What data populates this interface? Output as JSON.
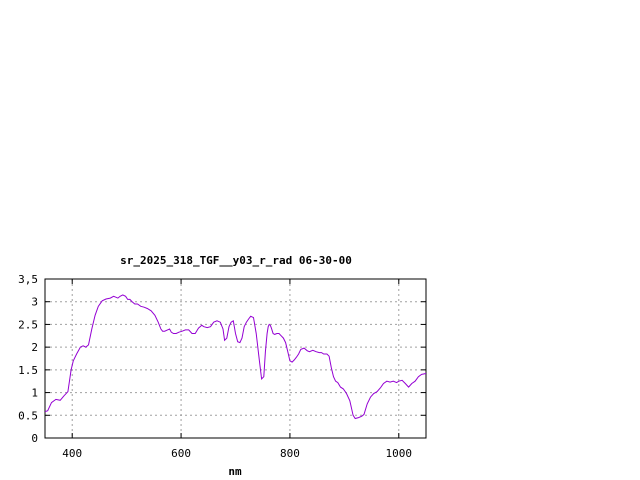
{
  "chart_data": {
    "type": "line",
    "title": "sr_2025_318_TGF__y03_r_rad 06-30-00",
    "xlabel": "nm",
    "ylabel": "",
    "xlim": [
      350,
      1050
    ],
    "ylim": [
      0,
      3.5
    ],
    "grid": true,
    "x_ticks": [
      400,
      600,
      800,
      1000
    ],
    "x_tick_labels": [
      "400",
      "600",
      "800",
      "1000"
    ],
    "y_ticks": [
      0,
      0.5,
      1,
      1.5,
      2,
      2.5,
      3,
      3.5
    ],
    "y_tick_labels": [
      "0",
      "0.5",
      "1",
      "1.5",
      "2",
      "2.5",
      "3",
      "3,5"
    ],
    "line_color": "#9400d3",
    "series": [
      {
        "x": [
          350,
          355,
          362,
          370,
          378,
          385,
          392,
          398,
          402,
          408,
          415,
          420,
          425,
          430,
          436,
          442,
          448,
          455,
          462,
          470,
          476,
          480,
          484,
          488,
          493,
          498,
          502,
          506,
          510,
          515,
          520,
          526,
          532,
          538,
          545,
          552,
          558,
          563,
          566,
          570,
          575,
          579,
          582,
          586,
          591,
          596,
          602,
          608,
          614,
          620,
          626,
          632,
          638,
          642,
          648,
          654,
          660,
          666,
          672,
          677,
          680,
          684,
          688,
          692,
          696,
          700,
          704,
          708,
          712,
          716,
          720,
          724,
          728,
          733,
          738,
          744,
          748,
          752,
          755,
          758,
          760,
          762,
          764,
          766,
          769,
          772,
          776,
          780,
          784,
          788,
          792,
          796,
          800,
          804,
          808,
          812,
          816,
          820,
          826,
          832,
          836,
          842,
          848,
          854,
          858,
          862,
          868,
          872,
          876,
          880,
          884,
          888,
          893,
          898,
          904,
          910,
          916,
          920,
          926,
          932,
          936,
          942,
          948,
          954,
          960,
          966,
          972,
          978,
          984,
          990,
          996,
          1000,
          1006,
          1012,
          1018,
          1024,
          1030,
          1036,
          1042,
          1050
        ],
        "y": [
          0.58,
          0.6,
          0.78,
          0.85,
          0.83,
          0.93,
          1.02,
          1.5,
          1.7,
          1.85,
          2.0,
          2.03,
          2.0,
          2.05,
          2.4,
          2.7,
          2.9,
          3.02,
          3.06,
          3.08,
          3.12,
          3.1,
          3.08,
          3.12,
          3.15,
          3.12,
          3.05,
          3.05,
          3.0,
          2.95,
          2.95,
          2.9,
          2.88,
          2.85,
          2.8,
          2.7,
          2.55,
          2.4,
          2.35,
          2.35,
          2.38,
          2.4,
          2.33,
          2.3,
          2.3,
          2.33,
          2.35,
          2.38,
          2.38,
          2.3,
          2.3,
          2.42,
          2.48,
          2.45,
          2.43,
          2.45,
          2.55,
          2.58,
          2.55,
          2.4,
          2.15,
          2.2,
          2.45,
          2.55,
          2.58,
          2.3,
          2.12,
          2.1,
          2.2,
          2.45,
          2.55,
          2.62,
          2.68,
          2.65,
          2.3,
          1.7,
          1.3,
          1.35,
          1.9,
          2.3,
          2.45,
          2.5,
          2.48,
          2.42,
          2.3,
          2.28,
          2.3,
          2.3,
          2.25,
          2.2,
          2.1,
          1.9,
          1.7,
          1.67,
          1.72,
          1.78,
          1.85,
          1.95,
          1.98,
          1.92,
          1.9,
          1.93,
          1.9,
          1.88,
          1.88,
          1.85,
          1.85,
          1.8,
          1.55,
          1.35,
          1.25,
          1.22,
          1.12,
          1.08,
          0.98,
          0.82,
          0.5,
          0.43,
          0.45,
          0.48,
          0.52,
          0.75,
          0.9,
          0.98,
          1.02,
          1.1,
          1.2,
          1.25,
          1.23,
          1.25,
          1.22,
          1.25,
          1.27,
          1.2,
          1.12,
          1.2,
          1.25,
          1.35,
          1.4,
          1.42
        ]
      }
    ]
  }
}
